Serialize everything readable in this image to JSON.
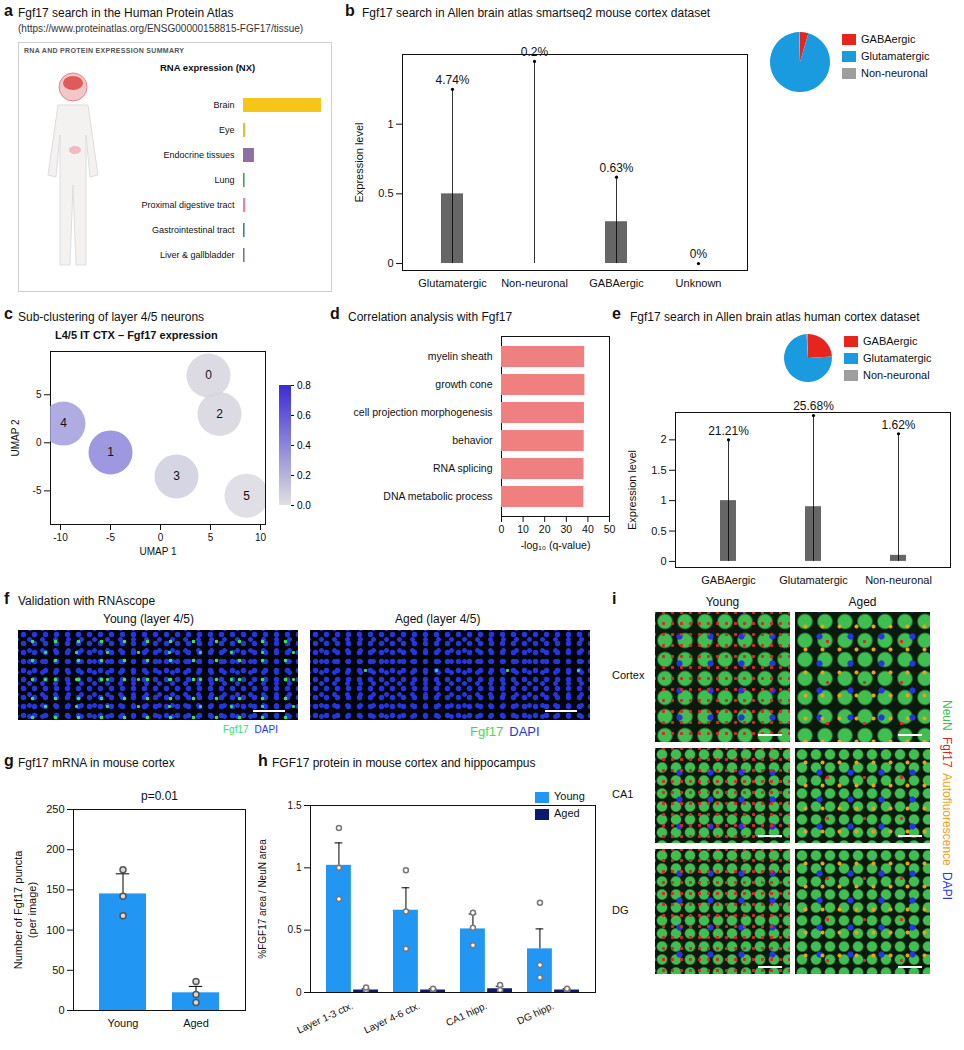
{
  "chart_data": [
    {
      "panel": "a",
      "type": "bar",
      "orientation": "horizontal",
      "title": "Fgf17 search in the Human Protein Atlas",
      "subtitle": "(https://www.proteinatlas.org/ENSG00000158815-FGF17/tissue)",
      "header": "RNA AND PROTEIN EXPRESSION SUMMARY",
      "xlabel": "RNA expression (NX)",
      "categories": [
        "Brain",
        "Eye",
        "Endocrine tissues",
        "Lung",
        "Proximal digestive tract",
        "Gastrointestinal tract",
        "Liver & gallbladder"
      ],
      "values": [
        100,
        3,
        14,
        2,
        3,
        2,
        2
      ],
      "colors": [
        "#f5c518",
        "#e0c23a",
        "#8e6fa3",
        "#3f9e5a",
        "#e38a9a",
        "#3a78b5",
        "#7a6fa8"
      ],
      "xlim": [
        0,
        100
      ],
      "tick_labels": "y"
    },
    {
      "panel": "b",
      "type": "strip",
      "title": "Fgf17 search in Allen brain atlas smartseq2 mouse cortex dataset",
      "ylabel": "Expression level",
      "categories": [
        "Glutamatergic",
        "Non-neuronal",
        "GABAergic",
        "Unknown"
      ],
      "min": [
        0,
        0,
        0,
        0
      ],
      "dense_max": [
        0.5,
        0,
        0.3,
        0
      ],
      "max": [
        1.25,
        1.45,
        0.62,
        0
      ],
      "annotations": [
        "4.74%",
        "0.2%",
        "0.63%",
        "0%"
      ],
      "color": "#000000",
      "ylim": [
        -0.05,
        1.5
      ],
      "yticks": [
        0,
        0.5,
        1
      ]
    },
    {
      "panel": "b",
      "type": "pie",
      "categories": [
        "GABAergic",
        "Glutamatergic",
        "Non-neuronal"
      ],
      "values": [
        4.5,
        95,
        0.5
      ],
      "colors": [
        "#e8251d",
        "#1a9be0",
        "#9e9e9e"
      ],
      "legend": "right"
    },
    {
      "panel": "c",
      "type": "scatter",
      "title": "Sub-clustering of layer 4/5 neurons",
      "subtitle": "L4/5 IT CTX – Fgf17 expression",
      "xlabel": "UMAP 1",
      "ylabel": "UMAP 2",
      "labels": [
        "0",
        "1",
        "2",
        "3",
        "4",
        "5"
      ],
      "x": [
        4.8,
        -5,
        5.9,
        1.6,
        -9.7,
        8.6
      ],
      "y": [
        7,
        -1,
        3,
        -3.5,
        2,
        -5.5
      ],
      "values": [
        0.05,
        0.4,
        0.05,
        0.08,
        0.3,
        0.03
      ],
      "xlim": [
        -11,
        10.5
      ],
      "xticks": [
        -10,
        -5,
        0,
        5,
        10
      ],
      "ylim": [
        -8.5,
        9.5
      ],
      "yticks": [
        -5,
        0,
        5
      ],
      "colorbar": {
        "range": [
          0,
          0.8
        ],
        "colors": [
          "#e0e0e0",
          "#3a2bd4"
        ],
        "ticks": [
          {
            "value": 0,
            "label": "0.0"
          },
          {
            "value": 0.2,
            "label": "0.2"
          },
          {
            "value": 0.4,
            "label": "0.4"
          },
          {
            "value": 0.6,
            "label": "0.6"
          },
          {
            "value": 0.8,
            "label": "0.8"
          }
        ]
      }
    },
    {
      "panel": "d",
      "type": "bar",
      "orientation": "horizontal",
      "title": "Correlation analysis with Fgf17",
      "xlabel": "-log₁₀ (q-value)",
      "categories": [
        "myelin sheath",
        "growth cone",
        "cell projection morphogenesis",
        "behavior",
        "RNA splicing",
        "DNA metabolic process"
      ],
      "values": [
        38.5,
        38.6,
        38.4,
        38.3,
        38.2,
        38.1
      ],
      "color": "#f08080",
      "xlim": [
        0,
        50
      ],
      "xticks": [
        0,
        10,
        20,
        30,
        40,
        50
      ]
    },
    {
      "panel": "e",
      "type": "strip",
      "title": "Fgf17 search in Allen brain atlas human cortex dataset",
      "ylabel": "Expression level",
      "categories": [
        "GABAergic",
        "Glutamatergic",
        "Non-neuronal"
      ],
      "min": [
        0,
        0,
        0
      ],
      "dense_max": [
        1.0,
        0.9,
        0.1
      ],
      "max": [
        2.0,
        2.4,
        2.1
      ],
      "annotations": [
        "21.21%",
        "25.68%",
        "1.62%"
      ],
      "color": "#000000",
      "ylim": [
        -0.1,
        2.45
      ],
      "yticks": [
        0,
        0.5,
        1,
        1.5,
        2
      ]
    },
    {
      "panel": "e",
      "type": "pie",
      "categories": [
        "GABAergic",
        "Glutamatergic",
        "Non-neuronal"
      ],
      "values": [
        24,
        75,
        1
      ],
      "colors": [
        "#e8251d",
        "#1a9be0",
        "#9e9e9e"
      ],
      "legend": "right"
    },
    {
      "panel": "g",
      "type": "bar",
      "title": "Fgf17 mRNA in mouse cortex",
      "ylabel": [
        "Number of Fgf17 puncta",
        "(per image)"
      ],
      "categories": [
        "Young",
        "Aged"
      ],
      "values": [
        145,
        22
      ],
      "errors": [
        25,
        8
      ],
      "points": [
        [
          118,
          142,
          175
        ],
        [
          10,
          20,
          36
        ]
      ],
      "annotation": "p=0.01",
      "color": "#2196f3",
      "ylim": [
        0,
        250
      ],
      "yticks": [
        0,
        50,
        100,
        150,
        200,
        250
      ]
    },
    {
      "panel": "h",
      "type": "bar",
      "title": "FGF17 protein in mouse cortex and hippocampus",
      "ylabel": "%FGF17 area / NeuN area",
      "categories": [
        "Layer 1-3 ctx.",
        "Layer 4-6 ctx.",
        "CA1 hipp.",
        "DG hipp."
      ],
      "series": [
        {
          "name": "Young",
          "color": "#2196f3",
          "values": [
            1.02,
            0.66,
            0.51,
            0.35
          ],
          "errors": [
            0.18,
            0.18,
            0.12,
            0.16
          ],
          "points": [
            [
              0.75,
              1.0,
              1.32
            ],
            [
              0.35,
              0.65,
              0.98
            ],
            [
              0.38,
              0.52,
              0.64
            ],
            [
              0.12,
              0.22,
              0.72
            ]
          ]
        },
        {
          "name": "Aged",
          "color": "#0d1a6e",
          "values": [
            0.02,
            0.02,
            0.03,
            0.02
          ],
          "errors": [
            0.01,
            0.01,
            0.02,
            0.01
          ],
          "points": [
            [
              0,
              0.02,
              0.04
            ],
            [
              0.01,
              0.02,
              0.03
            ],
            [
              0.01,
              0.02,
              0.06
            ],
            [
              0.01,
              0.02,
              0.03
            ]
          ]
        }
      ],
      "ylim": [
        0,
        1.5
      ],
      "yticks": [
        0,
        0.5,
        1,
        1.5
      ],
      "legend": "top-right"
    }
  ],
  "images": {
    "f": {
      "panel": "f",
      "title": "Validation with RNAscope",
      "panels": [
        "Young (layer 4/5)",
        "Aged (layer 4/5)"
      ],
      "channels": [
        {
          "name": "Fgf17",
          "color": "#3ddc5a"
        },
        {
          "name": "DAPI",
          "color": "#2436e0"
        }
      ]
    },
    "i": {
      "panel": "i",
      "columns": [
        "Young",
        "Aged"
      ],
      "rows": [
        "Cortex",
        "CA1",
        "DG"
      ],
      "channels": [
        {
          "name": "NeuN",
          "color": "#3fbf4f"
        },
        {
          "name": "Fgf17",
          "color": "#e02424"
        },
        {
          "name": "Autofluorescence",
          "color": "#e8a317"
        },
        {
          "name": "DAPI",
          "color": "#2436e0"
        }
      ]
    }
  }
}
